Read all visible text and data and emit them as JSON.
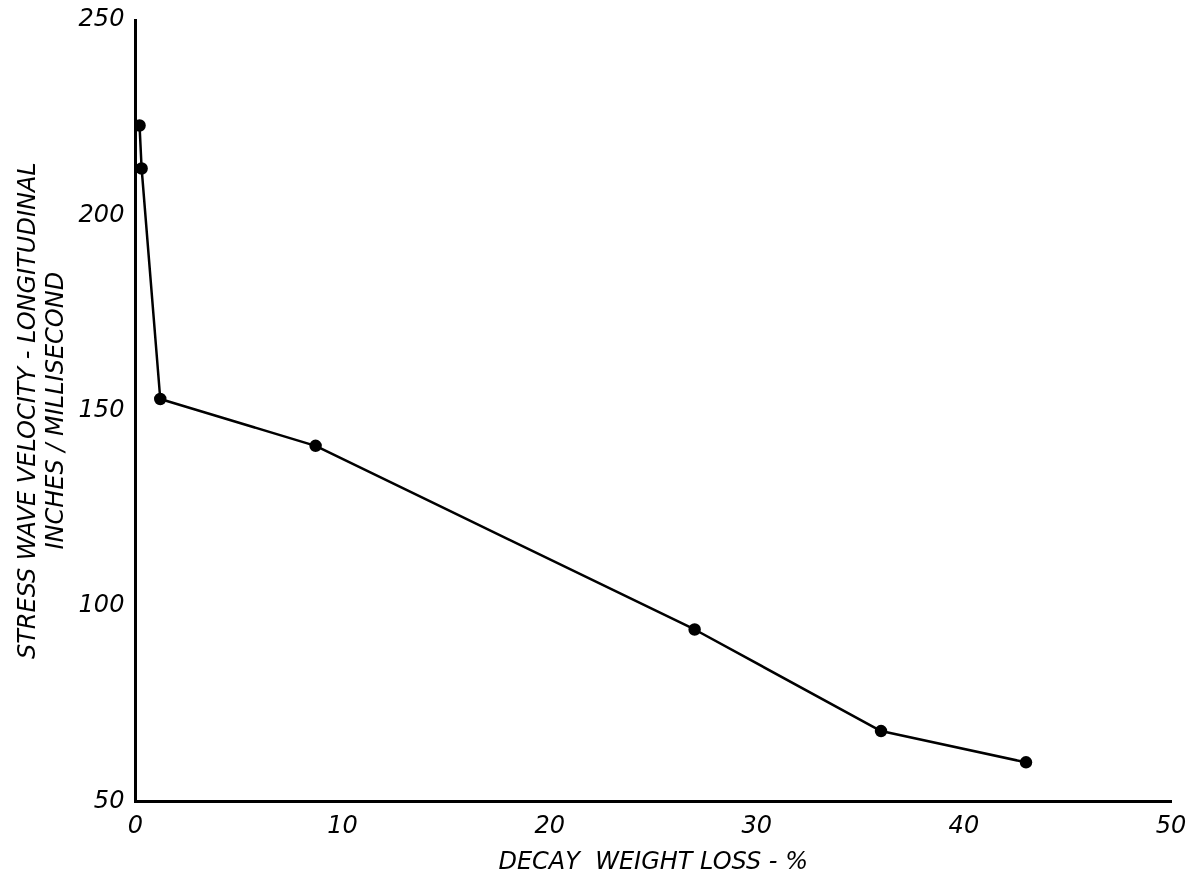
{
  "chart_data": {
    "type": "line",
    "xlabel": "DECAY  WEIGHT LOSS - %",
    "ylabel": "STRESS WAVE VELOCITY - LONGITUDINAL\nINCHES / MILLISECOND",
    "x": [
      0.2,
      0.3,
      1.2,
      8.7,
      27,
      36,
      43
    ],
    "series": [
      {
        "color": "#000000",
        "values": [
          223,
          212,
          153,
          141,
          94,
          68,
          60
        ]
      }
    ],
    "xlim": [
      0,
      50
    ],
    "xticks": [
      0,
      10,
      20,
      30,
      40,
      50
    ],
    "ylim": [
      50,
      250
    ],
    "yticks": [
      50,
      100,
      150,
      200,
      250
    ],
    "grid": false,
    "legend": false,
    "marker": "circle",
    "line_style": "solid"
  }
}
